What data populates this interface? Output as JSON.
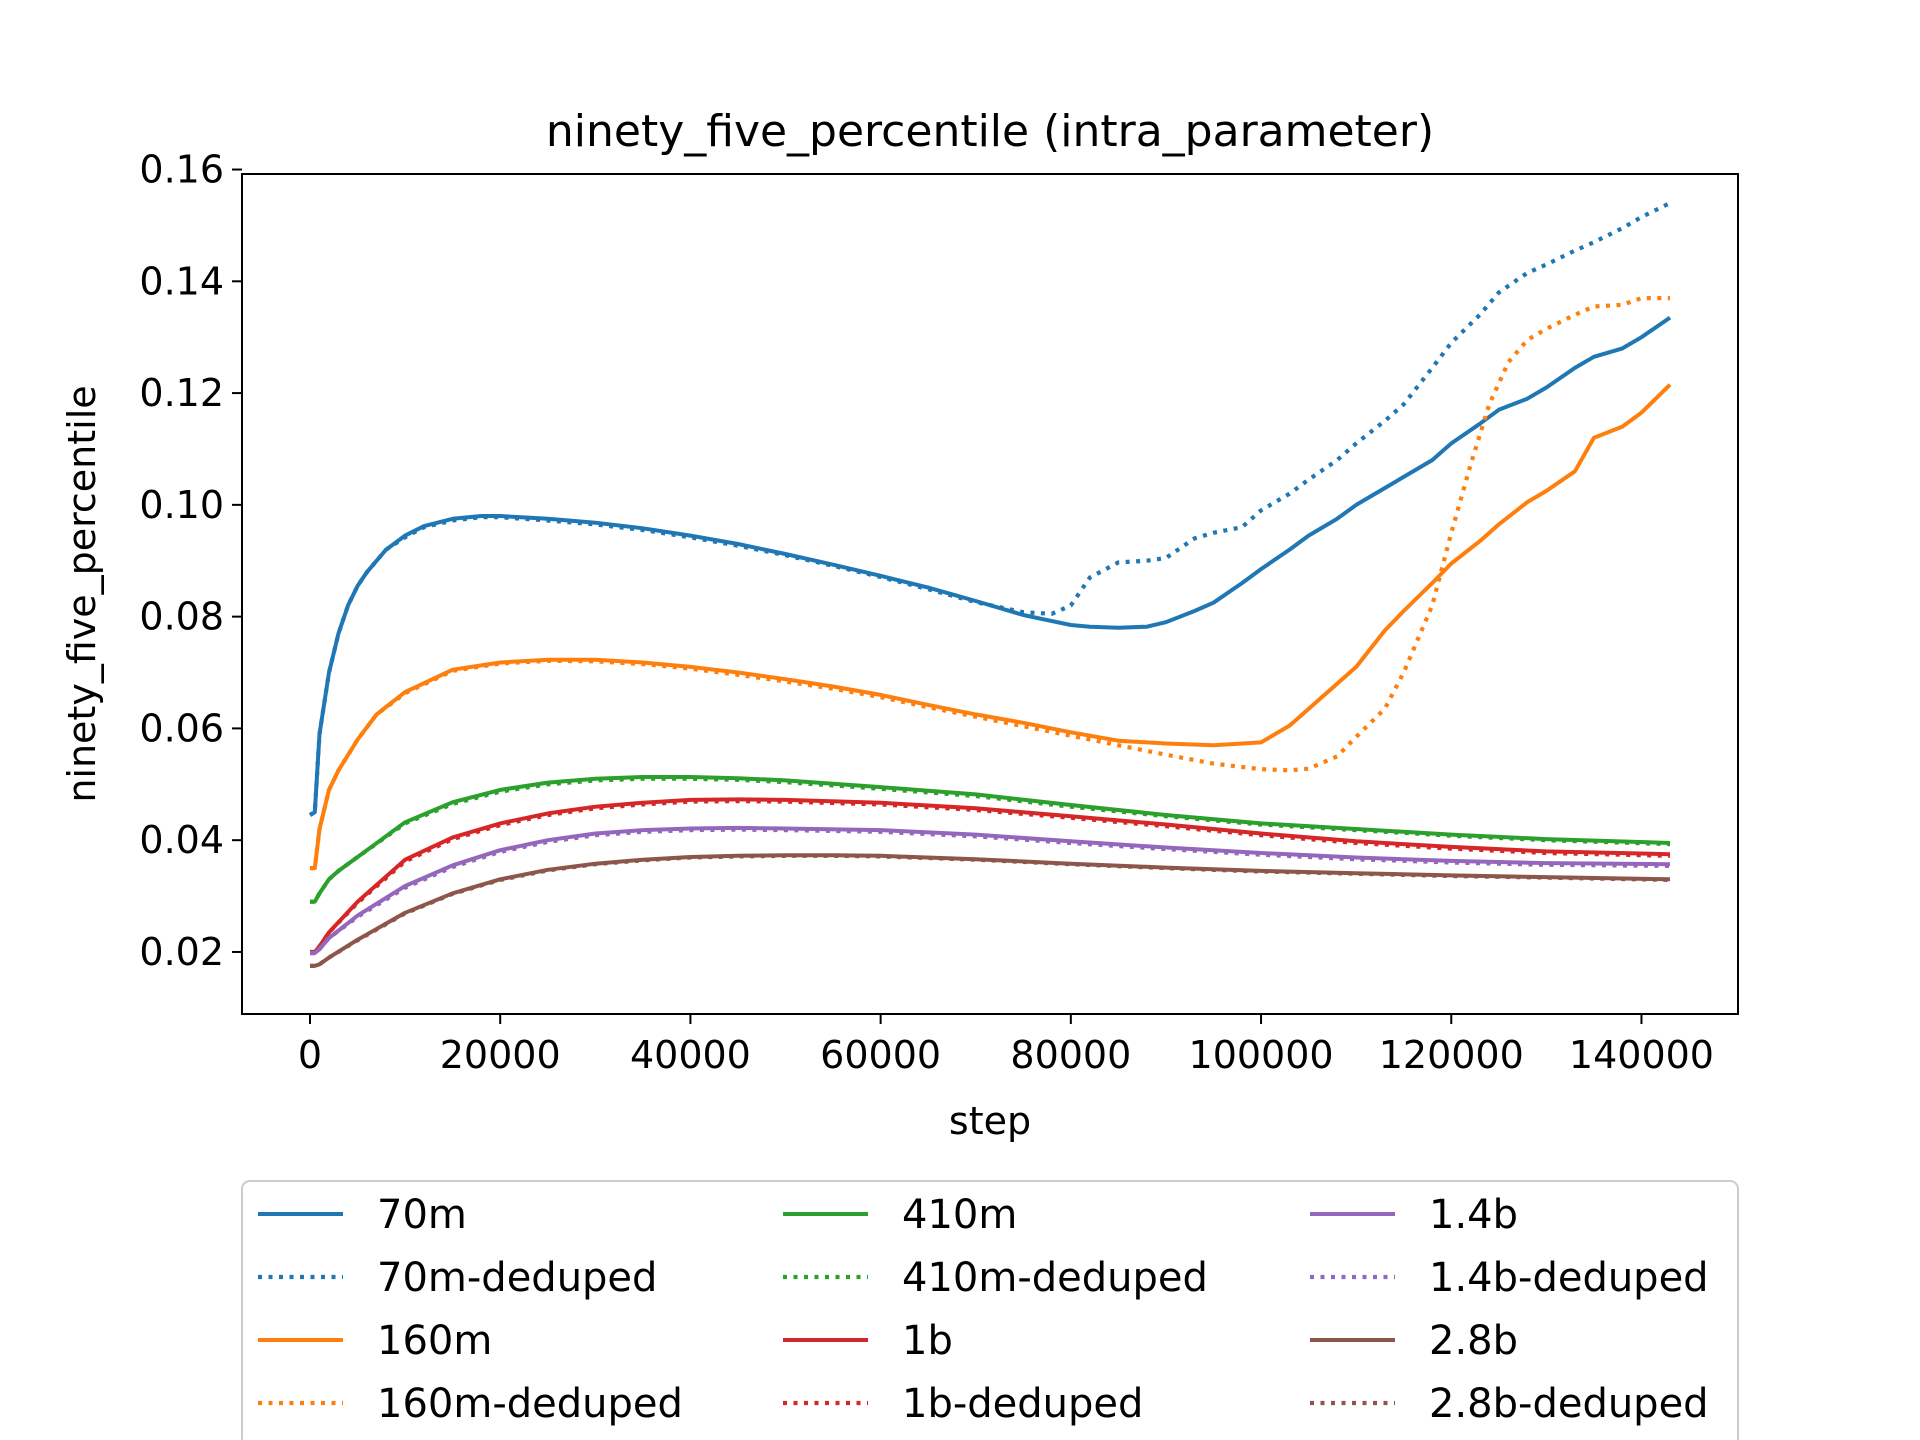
{
  "chart_data": {
    "type": "line",
    "title": "ninety_five_percentile (intra_parameter)",
    "xlabel": "step",
    "ylabel": "ninety_five_percentile",
    "xlim": [
      -7150,
      150150
    ],
    "ylim": [
      0.0089,
      0.1592
    ],
    "xticks": [
      0,
      20000,
      40000,
      60000,
      80000,
      100000,
      120000,
      140000
    ],
    "xtick_labels": [
      "0",
      "20000",
      "40000",
      "60000",
      "80000",
      "100000",
      "120000",
      "140000"
    ],
    "yticks": [
      0.02,
      0.04,
      0.06,
      0.08,
      0.1,
      0.12,
      0.14,
      0.16
    ],
    "ytick_labels": [
      "0.02",
      "0.04",
      "0.06",
      "0.08",
      "0.10",
      "0.12",
      "0.14",
      "0.16"
    ],
    "grid": false,
    "legend": {
      "placement": "below-plot",
      "columns": 3
    },
    "series": [
      {
        "name": "70m",
        "color": "#1f77b4",
        "style": "solid",
        "x": [
          0,
          500,
          1000,
          2000,
          3000,
          4000,
          5000,
          6000,
          7000,
          8000,
          10000,
          12000,
          15000,
          18000,
          20000,
          25000,
          30000,
          35000,
          40000,
          45000,
          50000,
          55000,
          60000,
          65000,
          70000,
          75000,
          78000,
          80000,
          82000,
          85000,
          88000,
          90000,
          93000,
          95000,
          98000,
          100000,
          103000,
          105000,
          108000,
          110000,
          113000,
          115000,
          118000,
          120000,
          123000,
          125000,
          128000,
          130000,
          133000,
          135000,
          138000,
          140000,
          143000
        ],
        "y": [
          0.0445,
          0.045,
          0.059,
          0.07,
          0.077,
          0.082,
          0.0855,
          0.088,
          0.09,
          0.092,
          0.0945,
          0.0962,
          0.0975,
          0.098,
          0.098,
          0.0975,
          0.0968,
          0.0958,
          0.0945,
          0.093,
          0.0912,
          0.0893,
          0.0873,
          0.0852,
          0.0828,
          0.0803,
          0.0792,
          0.0785,
          0.0782,
          0.078,
          0.0782,
          0.079,
          0.081,
          0.0825,
          0.086,
          0.0885,
          0.092,
          0.0945,
          0.0975,
          0.1,
          0.103,
          0.105,
          0.108,
          0.111,
          0.1145,
          0.117,
          0.119,
          0.121,
          0.1245,
          0.1265,
          0.128,
          0.13,
          0.1335
        ]
      },
      {
        "name": "70m-deduped",
        "color": "#1f77b4",
        "style": "dotted",
        "x": [
          0,
          500,
          1000,
          2000,
          3000,
          4000,
          5000,
          6000,
          7000,
          8000,
          10000,
          12000,
          15000,
          18000,
          20000,
          25000,
          30000,
          35000,
          40000,
          45000,
          50000,
          55000,
          60000,
          65000,
          70000,
          75000,
          78000,
          80000,
          82000,
          85000,
          88000,
          90000,
          93000,
          95000,
          98000,
          100000,
          103000,
          105000,
          108000,
          110000,
          113000,
          115000,
          118000,
          120000,
          123000,
          125000,
          128000,
          130000,
          133000,
          135000,
          138000,
          140000,
          143000
        ],
        "y": [
          0.0445,
          0.045,
          0.059,
          0.07,
          0.077,
          0.082,
          0.0855,
          0.088,
          0.09,
          0.092,
          0.0942,
          0.096,
          0.0972,
          0.0978,
          0.0978,
          0.0972,
          0.0965,
          0.0955,
          0.0942,
          0.0927,
          0.091,
          0.0891,
          0.0871,
          0.0849,
          0.0826,
          0.0808,
          0.0805,
          0.082,
          0.087,
          0.0897,
          0.09,
          0.0905,
          0.094,
          0.095,
          0.096,
          0.099,
          0.102,
          0.1045,
          0.108,
          0.111,
          0.115,
          0.118,
          0.1245,
          0.129,
          0.134,
          0.138,
          0.1415,
          0.143,
          0.1455,
          0.147,
          0.1495,
          0.1515,
          0.154
        ]
      },
      {
        "name": "160m",
        "color": "#ff7f0e",
        "style": "solid",
        "x": [
          0,
          500,
          1000,
          2000,
          3000,
          5000,
          7000,
          10000,
          15000,
          20000,
          25000,
          30000,
          35000,
          40000,
          45000,
          50000,
          55000,
          60000,
          65000,
          70000,
          75000,
          80000,
          85000,
          90000,
          95000,
          100000,
          103000,
          105000,
          108000,
          110000,
          113000,
          115000,
          118000,
          120000,
          123000,
          125000,
          128000,
          130000,
          133000,
          135000,
          138000,
          140000,
          143000
        ],
        "y": [
          0.035,
          0.035,
          0.042,
          0.049,
          0.0525,
          0.058,
          0.0625,
          0.0665,
          0.0705,
          0.0718,
          0.0723,
          0.0723,
          0.0718,
          0.071,
          0.07,
          0.0688,
          0.0675,
          0.066,
          0.0642,
          0.0625,
          0.061,
          0.0593,
          0.0578,
          0.0573,
          0.057,
          0.0575,
          0.0605,
          0.0635,
          0.068,
          0.071,
          0.0775,
          0.081,
          0.086,
          0.0895,
          0.0935,
          0.0965,
          0.1005,
          0.1025,
          0.106,
          0.112,
          0.114,
          0.1165,
          0.1215
        ]
      },
      {
        "name": "160m-deduped",
        "color": "#ff7f0e",
        "style": "dotted",
        "x": [
          0,
          500,
          1000,
          2000,
          3000,
          5000,
          7000,
          10000,
          15000,
          20000,
          25000,
          30000,
          35000,
          40000,
          45000,
          50000,
          55000,
          60000,
          65000,
          70000,
          75000,
          80000,
          85000,
          90000,
          95000,
          100000,
          103000,
          105000,
          108000,
          110000,
          113000,
          115000,
          118000,
          120000,
          122000,
          124000,
          126000,
          128000,
          130000,
          133000,
          135000,
          138000,
          140000,
          143000
        ],
        "y": [
          0.035,
          0.035,
          0.042,
          0.049,
          0.0525,
          0.058,
          0.0625,
          0.0663,
          0.0703,
          0.0716,
          0.0721,
          0.072,
          0.0715,
          0.0707,
          0.0696,
          0.0684,
          0.0671,
          0.0656,
          0.0638,
          0.0621,
          0.0604,
          0.0587,
          0.057,
          0.0553,
          0.0537,
          0.0527,
          0.0525,
          0.0528,
          0.055,
          0.0585,
          0.0635,
          0.07,
          0.082,
          0.095,
          0.107,
          0.118,
          0.1255,
          0.1295,
          0.1315,
          0.134,
          0.1355,
          0.1358,
          0.137,
          0.137
        ]
      },
      {
        "name": "410m",
        "color": "#2ca02c",
        "style": "solid",
        "x": [
          0,
          500,
          1000,
          2000,
          3000,
          5000,
          10000,
          15000,
          20000,
          25000,
          30000,
          35000,
          40000,
          45000,
          50000,
          60000,
          70000,
          80000,
          90000,
          100000,
          110000,
          120000,
          130000,
          143000
        ],
        "y": [
          0.029,
          0.029,
          0.0305,
          0.033,
          0.0345,
          0.037,
          0.0432,
          0.0468,
          0.049,
          0.0503,
          0.051,
          0.0513,
          0.0513,
          0.0511,
          0.0507,
          0.0495,
          0.0482,
          0.0463,
          0.0445,
          0.043,
          0.042,
          0.041,
          0.0402,
          0.0395
        ]
      },
      {
        "name": "410m-deduped",
        "color": "#2ca02c",
        "style": "dotted",
        "x": [
          0,
          500,
          1000,
          2000,
          3000,
          5000,
          10000,
          15000,
          20000,
          25000,
          30000,
          35000,
          40000,
          45000,
          50000,
          60000,
          70000,
          80000,
          90000,
          100000,
          110000,
          120000,
          130000,
          143000
        ],
        "y": [
          0.029,
          0.029,
          0.0305,
          0.033,
          0.0345,
          0.037,
          0.043,
          0.0465,
          0.0487,
          0.05,
          0.0507,
          0.051,
          0.051,
          0.0508,
          0.0504,
          0.0492,
          0.0479,
          0.046,
          0.0443,
          0.0428,
          0.0418,
          0.0408,
          0.04,
          0.0393
        ]
      },
      {
        "name": "1b",
        "color": "#d62728",
        "style": "solid",
        "x": [
          0,
          500,
          1000,
          2000,
          5000,
          10000,
          15000,
          20000,
          25000,
          30000,
          35000,
          40000,
          45000,
          50000,
          60000,
          70000,
          80000,
          90000,
          100000,
          110000,
          120000,
          130000,
          143000
        ],
        "y": [
          0.02,
          0.02,
          0.021,
          0.0235,
          0.029,
          0.0365,
          0.0405,
          0.043,
          0.0448,
          0.046,
          0.0467,
          0.0472,
          0.0473,
          0.0472,
          0.0467,
          0.0457,
          0.0443,
          0.0428,
          0.0412,
          0.0398,
          0.0388,
          0.038,
          0.0375
        ]
      },
      {
        "name": "1b-deduped",
        "color": "#d62728",
        "style": "dotted",
        "x": [
          0,
          500,
          1000,
          2000,
          5000,
          10000,
          15000,
          20000,
          25000,
          30000,
          35000,
          40000,
          45000,
          50000,
          60000,
          70000,
          80000,
          90000,
          100000,
          110000,
          120000,
          130000,
          143000
        ],
        "y": [
          0.02,
          0.02,
          0.021,
          0.0235,
          0.0288,
          0.0362,
          0.0402,
          0.0427,
          0.0445,
          0.0457,
          0.0464,
          0.0469,
          0.047,
          0.0469,
          0.0464,
          0.0454,
          0.044,
          0.0425,
          0.0409,
          0.0395,
          0.0385,
          0.0377,
          0.0372
        ]
      },
      {
        "name": "1.4b",
        "color": "#9467bd",
        "style": "solid",
        "x": [
          0,
          500,
          1000,
          2000,
          5000,
          10000,
          15000,
          20000,
          25000,
          30000,
          35000,
          40000,
          45000,
          50000,
          60000,
          70000,
          80000,
          90000,
          100000,
          110000,
          120000,
          130000,
          143000
        ],
        "y": [
          0.0198,
          0.0198,
          0.0205,
          0.0225,
          0.0265,
          0.0318,
          0.0355,
          0.0382,
          0.04,
          0.0412,
          0.0418,
          0.0421,
          0.0422,
          0.0421,
          0.0418,
          0.041,
          0.0398,
          0.0387,
          0.0377,
          0.0369,
          0.0363,
          0.0359,
          0.0357
        ]
      },
      {
        "name": "1.4b-deduped",
        "color": "#9467bd",
        "style": "dotted",
        "x": [
          0,
          500,
          1000,
          2000,
          5000,
          10000,
          15000,
          20000,
          25000,
          30000,
          35000,
          40000,
          45000,
          50000,
          60000,
          70000,
          80000,
          90000,
          100000,
          110000,
          120000,
          130000,
          143000
        ],
        "y": [
          0.0198,
          0.0198,
          0.0205,
          0.0225,
          0.0263,
          0.0315,
          0.0352,
          0.0379,
          0.0397,
          0.0409,
          0.0415,
          0.0418,
          0.0419,
          0.0418,
          0.0415,
          0.0407,
          0.0395,
          0.0384,
          0.0374,
          0.0366,
          0.036,
          0.0356,
          0.0354
        ]
      },
      {
        "name": "2.8b",
        "color": "#8c564b",
        "style": "solid",
        "x": [
          0,
          500,
          1000,
          2000,
          5000,
          10000,
          15000,
          20000,
          25000,
          30000,
          35000,
          40000,
          45000,
          50000,
          55000,
          60000,
          70000,
          80000,
          90000,
          100000,
          110000,
          120000,
          130000,
          143000
        ],
        "y": [
          0.0175,
          0.0175,
          0.0178,
          0.019,
          0.0222,
          0.027,
          0.0305,
          0.033,
          0.0347,
          0.0358,
          0.0365,
          0.037,
          0.0372,
          0.0373,
          0.0373,
          0.0372,
          0.0366,
          0.0358,
          0.0351,
          0.0345,
          0.0341,
          0.0337,
          0.0334,
          0.033
        ]
      },
      {
        "name": "2.8b-deduped",
        "color": "#8c564b",
        "style": "dotted",
        "x": [
          0,
          500,
          1000,
          2000,
          5000,
          10000,
          15000,
          20000,
          25000,
          30000,
          35000,
          40000,
          45000,
          50000,
          55000,
          60000,
          70000,
          80000,
          90000,
          100000,
          110000,
          120000,
          130000,
          143000
        ],
        "y": [
          0.0175,
          0.0175,
          0.0178,
          0.019,
          0.0221,
          0.0269,
          0.0304,
          0.0329,
          0.0346,
          0.0357,
          0.0364,
          0.0369,
          0.0371,
          0.0372,
          0.0372,
          0.0371,
          0.0365,
          0.0357,
          0.035,
          0.0344,
          0.034,
          0.0336,
          0.0333,
          0.0329
        ]
      }
    ]
  }
}
